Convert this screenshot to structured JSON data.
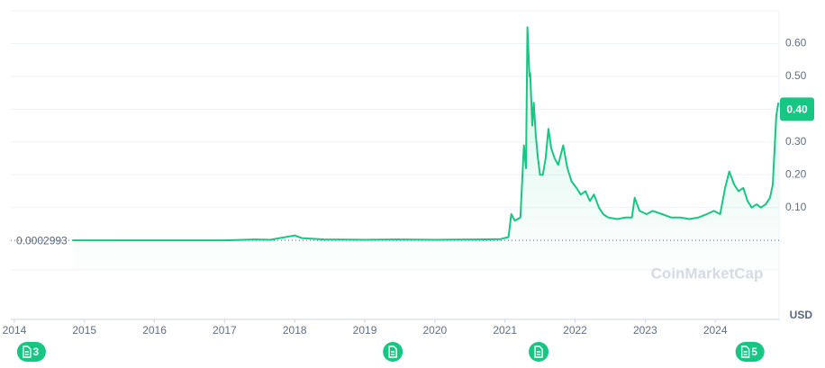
{
  "chart_data": {
    "type": "line",
    "unit": "USD",
    "watermark": "CoinMarketCap",
    "color": "#16c784",
    "start_price": 0.0002993,
    "current_price": {
      "value": 0.4,
      "label": "0.40"
    },
    "x": [
      2014.83,
      2016.0,
      2017.0,
      2017.43,
      2017.65,
      2018.0,
      2018.1,
      2018.42,
      2019.0,
      2019.45,
      2020.0,
      2020.6,
      2020.94,
      2021.05,
      2021.09,
      2021.14,
      2021.22,
      2021.27,
      2021.3,
      2021.32,
      2021.35,
      2021.36,
      2021.39,
      2021.41,
      2021.44,
      2021.47,
      2021.5,
      2021.54,
      2021.58,
      2021.62,
      2021.66,
      2021.71,
      2021.76,
      2021.83,
      2021.89,
      2021.95,
      2022.02,
      2022.08,
      2022.15,
      2022.21,
      2022.27,
      2022.34,
      2022.4,
      2022.47,
      2022.6,
      2022.72,
      2022.81,
      2022.85,
      2022.92,
      2023.02,
      2023.11,
      2023.24,
      2023.37,
      2023.5,
      2023.63,
      2023.76,
      2023.88,
      2023.98,
      2024.07,
      2024.14,
      2024.2,
      2024.27,
      2024.33,
      2024.4,
      2024.46,
      2024.52,
      2024.59,
      2024.65,
      2024.72,
      2024.78,
      2024.82,
      2024.87,
      2024.9
    ],
    "values": [
      0.0003,
      0.0002,
      0.0003,
      0.003,
      0.002,
      0.015,
      0.007,
      0.003,
      0.002,
      0.003,
      0.002,
      0.003,
      0.004,
      0.01,
      0.08,
      0.06,
      0.07,
      0.29,
      0.22,
      0.65,
      0.5,
      0.51,
      0.35,
      0.42,
      0.32,
      0.25,
      0.2,
      0.2,
      0.25,
      0.34,
      0.28,
      0.25,
      0.23,
      0.29,
      0.22,
      0.18,
      0.16,
      0.14,
      0.15,
      0.12,
      0.14,
      0.1,
      0.08,
      0.07,
      0.065,
      0.07,
      0.07,
      0.13,
      0.09,
      0.08,
      0.09,
      0.08,
      0.07,
      0.07,
      0.065,
      0.07,
      0.08,
      0.09,
      0.08,
      0.16,
      0.21,
      0.17,
      0.15,
      0.16,
      0.12,
      0.1,
      0.11,
      0.1,
      0.11,
      0.13,
      0.17,
      0.38,
      0.42
    ],
    "xlim": [
      2013.95,
      2024.91
    ],
    "xticks": [
      2014,
      2015,
      2016,
      2017,
      2018,
      2019,
      2020,
      2021,
      2022,
      2023,
      2024
    ],
    "ylim": [
      -0.09,
      0.7
    ],
    "yticks": [
      {
        "value": 0.1,
        "label": "0.10"
      },
      {
        "value": 0.2,
        "label": "0.20"
      },
      {
        "value": 0.3,
        "label": "0.30"
      },
      {
        "value": 0.4,
        "label": "0.40"
      },
      {
        "value": 0.5,
        "label": "0.50"
      },
      {
        "value": 0.6,
        "label": "0.60"
      }
    ],
    "grid": true,
    "annotations": [
      {
        "x": 2014.18,
        "label": "3"
      },
      {
        "x": 2019.4
      },
      {
        "x": 2021.48
      },
      {
        "x": 2024.43,
        "label": "5"
      }
    ]
  }
}
